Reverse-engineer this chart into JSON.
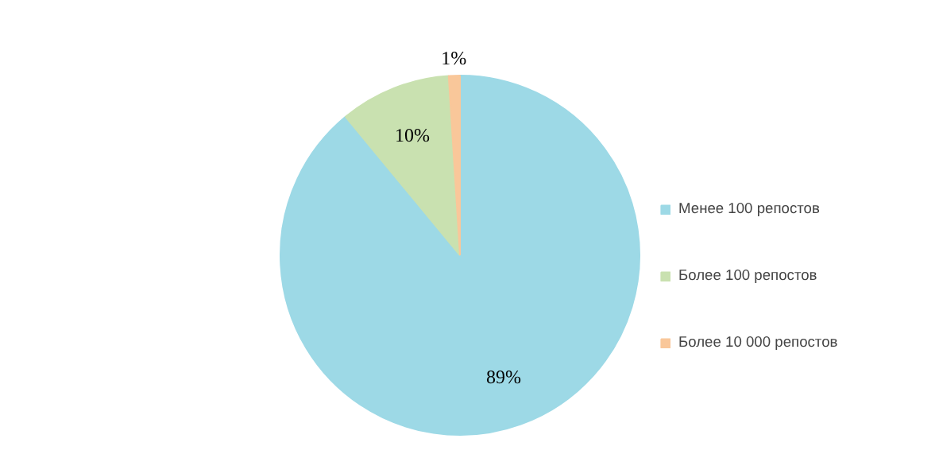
{
  "chart_data": {
    "type": "pie",
    "categories": [
      "Менее 100 репостов",
      "Более 100 репостов",
      "Более 10 000 репостов"
    ],
    "values": [
      89,
      10,
      1
    ],
    "colors": [
      "#9dd9e6",
      "#c9e1b0",
      "#f9c79a"
    ],
    "value_labels": [
      "89%",
      "10%",
      "1%"
    ],
    "legend": "right"
  }
}
